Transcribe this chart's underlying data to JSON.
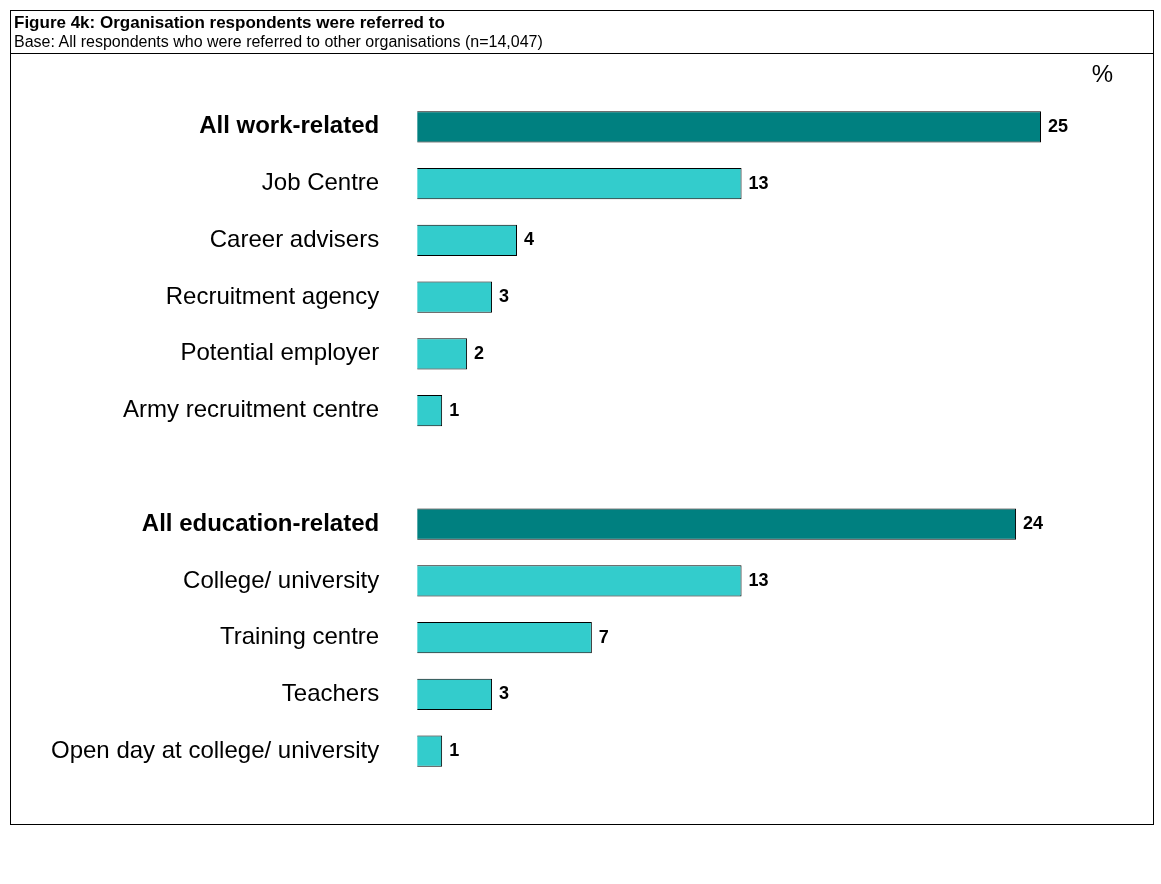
{
  "chart_data": {
    "type": "bar",
    "orientation": "horizontal",
    "title": "Figure 4k: Organisation respondents were referred to",
    "subtitle": "Base: All respondents who were referred to other organisations (n=14,047)",
    "categories": [
      "All work-related",
      "Job Centre",
      "Career advisers",
      "Recruitment agency",
      "Potential employer",
      "Army recruitment centre",
      null,
      "All education-related",
      "College/ university",
      "Training centre",
      "Teachers",
      "Open day at college/ university"
    ],
    "values": [
      25,
      13,
      4,
      3,
      2,
      1,
      null,
      24,
      13,
      7,
      3,
      1
    ],
    "colors": [
      "#008080",
      "#33cccc",
      "#33cccc",
      "#33cccc",
      "#33cccc",
      "#33cccc",
      "#33cccc",
      "#008080",
      "#33cccc",
      "#33cccc",
      "#33cccc",
      "#33cccc"
    ],
    "data_labels": true,
    "tick_labels": "y",
    "annotations": [
      "%"
    ]
  }
}
